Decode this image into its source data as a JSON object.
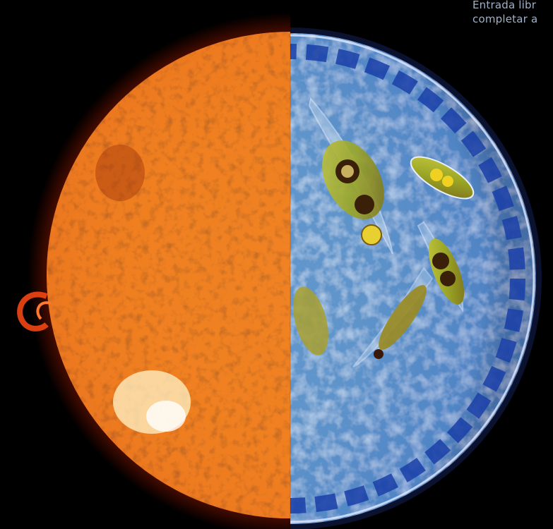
{
  "caption": {
    "line1": "Entrada libr",
    "line2": "completar a"
  },
  "image": {
    "left_half": "sun-photograph",
    "right_half": "diatom-micrograph",
    "colors": {
      "background": "#000000",
      "sun_core": "#f5891a",
      "sun_edge": "#d42a08",
      "micro_field": "#6fa6d8",
      "micro_rim": "#1a3fa8",
      "cell_green": "#a8b830",
      "cell_brown": "#6a3a10"
    }
  }
}
